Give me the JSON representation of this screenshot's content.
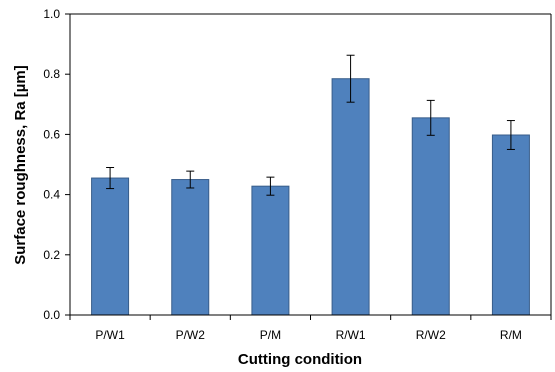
{
  "chart_data": {
    "type": "bar",
    "title": "",
    "xlabel": "Cutting condition",
    "ylabel": "Surface roughness, Ra [µm]",
    "categories": [
      "P/W1",
      "P/W2",
      "P/M",
      "R/W1",
      "R/W2",
      "R/M"
    ],
    "values": [
      0.455,
      0.45,
      0.428,
      0.785,
      0.655,
      0.598
    ],
    "error": [
      0.035,
      0.028,
      0.03,
      0.078,
      0.058,
      0.048
    ],
    "ylim": [
      0,
      1.0
    ],
    "yticks": [
      "0.0",
      "0.2",
      "0.4",
      "0.6",
      "0.8",
      "1.0"
    ],
    "grid": false,
    "bar_color": "#4F81BD",
    "bar_edge_color": "#385D8A"
  }
}
